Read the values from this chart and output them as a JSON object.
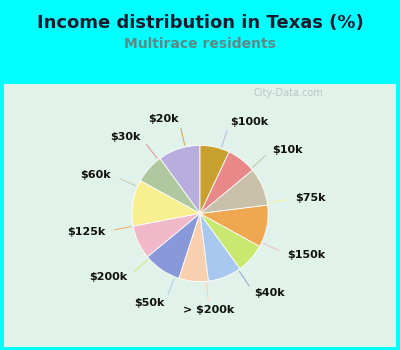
{
  "title": "Income distribution in Texas (%)",
  "subtitle": "Multirace residents",
  "title_color": "#1a1a2e",
  "subtitle_color": "#5a8a8a",
  "watermark": "City-Data.com",
  "background_top": "#00ffff",
  "background_chart_top": "#d8f0e8",
  "background_chart_bottom": "#f0faf5",
  "labels": [
    "$100k",
    "$10k",
    "$75k",
    "$150k",
    "$40k",
    "> $200k",
    "$50k",
    "$200k",
    "$125k",
    "$60k",
    "$30k",
    "$20k"
  ],
  "sizes": [
    10,
    7,
    11,
    8,
    9,
    7,
    8,
    7,
    10,
    9,
    7,
    7
  ],
  "colors": [
    "#b8aedd",
    "#b0c8a0",
    "#f8f090",
    "#f0b8c8",
    "#8898d8",
    "#f8d0b0",
    "#a8c8f0",
    "#c8e870",
    "#f0a850",
    "#c8c0a8",
    "#e88888",
    "#c8a030"
  ],
  "startangle": 90,
  "label_fontsize": 8,
  "title_fontsize": 13,
  "subtitle_fontsize": 10
}
